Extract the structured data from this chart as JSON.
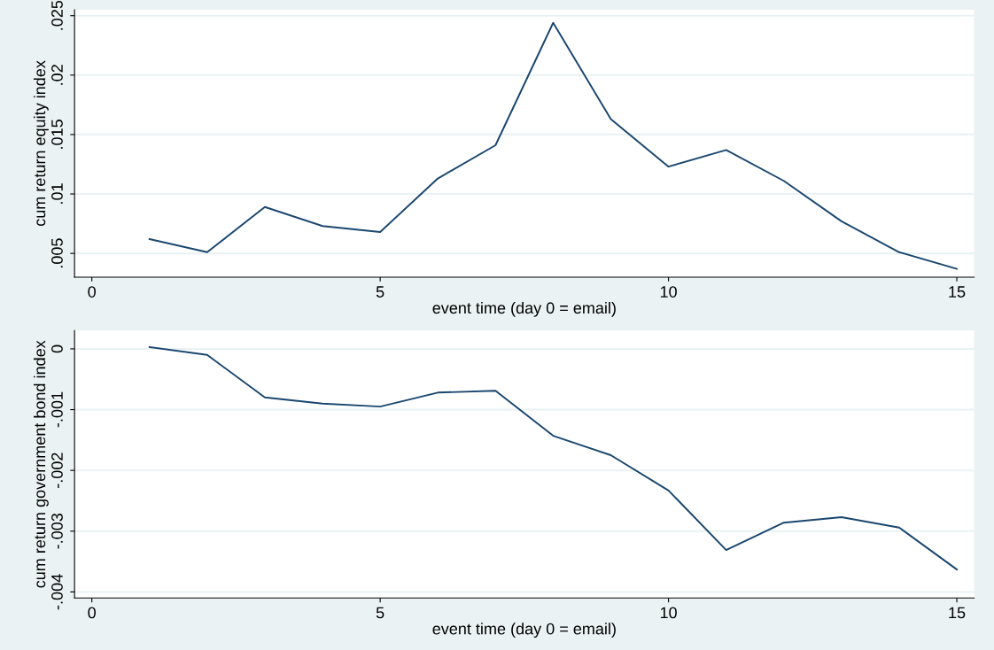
{
  "chart_data": [
    {
      "type": "line",
      "xlabel": "event time (day 0 = email)",
      "ylabel": "cum return equity index",
      "x": [
        1,
        2,
        3,
        4,
        5,
        6,
        7,
        8,
        9,
        10,
        11,
        12,
        13,
        14,
        15
      ],
      "series": [
        {
          "color": "#1a476f",
          "values": [
            0.0062,
            0.0051,
            0.0089,
            0.0073,
            0.0068,
            0.0113,
            0.0141,
            0.0244,
            0.0163,
            0.0123,
            0.0137,
            0.0111,
            0.0077,
            0.0051,
            0.0037
          ]
        }
      ],
      "xlim": [
        -0.3,
        15.3
      ],
      "xticks": [
        0,
        5,
        10,
        15
      ],
      "ylim": [
        0.003,
        0.0255
      ],
      "yticks": [
        {
          "value": 0.005,
          "label": ".005"
        },
        {
          "value": 0.01,
          "label": ".01"
        },
        {
          "value": 0.015,
          "label": ".015"
        },
        {
          "value": 0.02,
          "label": ".02"
        },
        {
          "value": 0.025,
          "label": ".025"
        }
      ],
      "grid": "y",
      "line_style": "solid",
      "marker": "none"
    },
    {
      "type": "line",
      "xlabel": "event time (day 0 = email)",
      "ylabel": "cum return government bond index",
      "x": [
        1,
        2,
        3,
        4,
        5,
        6,
        7,
        8,
        9,
        10,
        11,
        12,
        13,
        14,
        15
      ],
      "series": [
        {
          "color": "#1a476f",
          "values": [
            3e-05,
            -0.0001,
            -0.0008,
            -0.0009,
            -0.00095,
            -0.00072,
            -0.00069,
            -0.00143,
            -0.00175,
            -0.00233,
            -0.00331,
            -0.00286,
            -0.00277,
            -0.00294,
            -0.00363
          ]
        }
      ],
      "xlim": [
        -0.3,
        15.3
      ],
      "xticks": [
        0,
        5,
        10,
        15
      ],
      "ylim": [
        -0.0041,
        0.0003
      ],
      "yticks": [
        {
          "value": -0.004,
          "label": "-.004"
        },
        {
          "value": -0.003,
          "label": "-.003"
        },
        {
          "value": -0.002,
          "label": "-.002"
        },
        {
          "value": -0.001,
          "label": "-.001"
        },
        {
          "value": 0,
          "label": "0"
        }
      ],
      "grid": "y",
      "line_style": "solid",
      "marker": "none"
    }
  ]
}
